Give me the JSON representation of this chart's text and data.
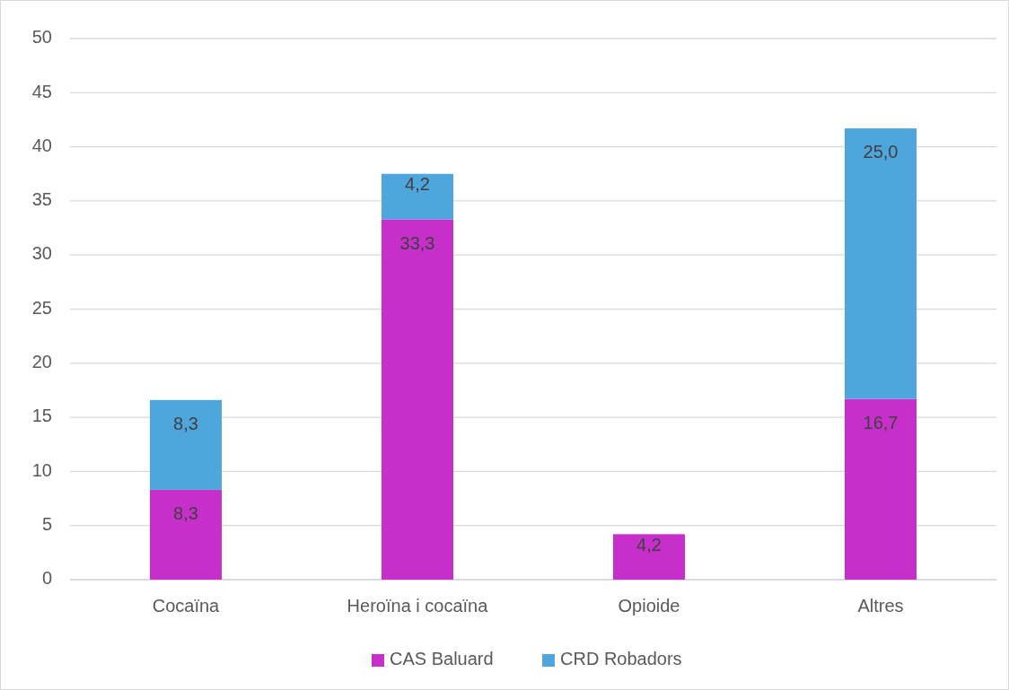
{
  "chart_data": {
    "type": "bar",
    "stacked": true,
    "categories": [
      "Cocaïna",
      "Heroïna i cocaïna",
      "Opioide",
      "Altres"
    ],
    "series": [
      {
        "name": "CAS Baluard",
        "color": "#c72fcb",
        "values": [
          8.3,
          33.3,
          4.2,
          16.7
        ],
        "value_labels": [
          "8,3",
          "33,3",
          "4,2",
          "16,7"
        ]
      },
      {
        "name": "CRD Robadors",
        "color": "#4ea6dc",
        "values": [
          8.3,
          4.2,
          null,
          25.0
        ],
        "value_labels": [
          "8,3",
          "4,2",
          null,
          "25,0"
        ]
      }
    ],
    "ylim": [
      0,
      50
    ],
    "yticks": [
      0,
      5,
      10,
      15,
      20,
      25,
      30,
      35,
      40,
      45,
      50
    ],
    "grid": "y",
    "legend": "bottom"
  }
}
